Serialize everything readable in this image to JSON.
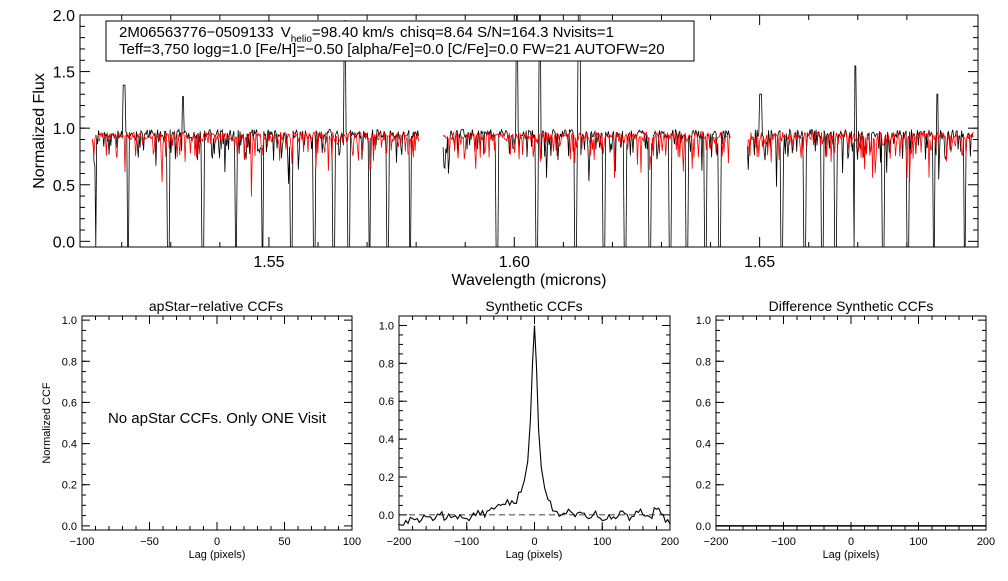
{
  "chart_data": [
    {
      "id": "spectrum",
      "type": "line",
      "title": "",
      "info_box": {
        "line1": {
          "id": "2M06563776−0509133",
          "v_prefix": "V",
          "v_sub": "helio",
          "v_value": "=98.40 km/s",
          "rest": "chisq=8.64  S/N=164.3  Nvisits=1"
        },
        "line2": "Teff=3,750 logg=1.0 [Fe/H]=−0.50 [alpha/Fe]=0.0 [C/Fe]=0.0 FW=21 AUTOFW=20"
      },
      "xlabel": "Wavelength (microns)",
      "ylabel": "Normalized Flux",
      "xlim": [
        1.5115,
        1.6945
      ],
      "ylim": [
        -0.05,
        2.0
      ],
      "xticks_labeled": [
        1.55,
        1.6,
        1.65
      ],
      "xtick_labels": [
        "1.55",
        "1.60",
        "1.65"
      ],
      "yticks": [
        0.0,
        0.5,
        1.0,
        1.5,
        2.0
      ],
      "ytick_labels": [
        "0.0",
        "0.5",
        "1.0",
        "1.5",
        "2.0"
      ],
      "chips": [
        [
          1.514,
          1.5805
        ],
        [
          1.5855,
          1.644
        ],
        [
          1.6475,
          1.6935
        ]
      ],
      "series": [
        {
          "color": "#000000",
          "role": "observed",
          "continuum": 0.95,
          "noise": 0.04
        },
        {
          "color": "#ff0000",
          "role": "model",
          "continuum": 0.93,
          "noise": 0.035
        }
      ],
      "deep_absorptions": [
        1.5145,
        1.5213,
        1.5295,
        1.5365,
        1.5433,
        1.5487,
        1.5546,
        1.5592,
        1.5632,
        1.5662,
        1.5705,
        1.5742,
        1.5788,
        1.5858,
        1.5965,
        1.6046,
        1.6125,
        1.6183,
        1.6226,
        1.6276,
        1.6318,
        1.6352,
        1.639,
        1.6419,
        1.6476,
        1.6545,
        1.6592,
        1.6628,
        1.6655,
        1.6694,
        1.6752,
        1.6802,
        1.6855,
        1.6918
      ],
      "emission_spikes": [
        {
          "x": 1.5205,
          "y": 1.38
        },
        {
          "x": 1.5325,
          "y": 1.28
        },
        {
          "x": 1.5655,
          "y": 1.95
        },
        {
          "x": 1.6005,
          "y": 2.0
        },
        {
          "x": 1.6052,
          "y": 2.0
        },
        {
          "x": 1.6132,
          "y": 2.0
        },
        {
          "x": 1.6502,
          "y": 1.3
        },
        {
          "x": 1.6695,
          "y": 1.55
        },
        {
          "x": 1.6862,
          "y": 1.3
        }
      ]
    },
    {
      "id": "apstar-ccf",
      "type": "line",
      "title": "apStar−relative CCFs",
      "xlabel": "Lag (pixels)",
      "ylabel": "Normalized CCF",
      "xlim": [
        -100,
        100
      ],
      "ylim": [
        -0.02,
        1.02
      ],
      "xticks": [
        -100,
        -50,
        0,
        50,
        100
      ],
      "xtick_labels": [
        "−100",
        "−50",
        "0",
        "50",
        "100"
      ],
      "yticks": [
        0.0,
        0.2,
        0.4,
        0.6,
        0.8,
        1.0
      ],
      "ytick_labels": [
        "0.0",
        "0.2",
        "0.4",
        "0.6",
        "0.8",
        "1.0"
      ],
      "annotation": "No apStar CCFs.  Only ONE Visit",
      "series": []
    },
    {
      "id": "synthetic-ccf",
      "type": "line",
      "title": "Synthetic CCFs",
      "xlabel": "Lag (pixels)",
      "ylabel": "",
      "xlim": [
        -200,
        200
      ],
      "ylim": [
        -0.08,
        1.05
      ],
      "xticks": [
        -200,
        -100,
        0,
        100,
        200
      ],
      "xtick_labels": [
        "−200",
        "−100",
        "0",
        "100",
        "200"
      ],
      "yticks": [
        0.0,
        0.2,
        0.4,
        0.6,
        0.8,
        1.0
      ],
      "ytick_labels": [
        "0.0",
        "0.2",
        "0.4",
        "0.6",
        "0.8",
        "1.0"
      ],
      "reference_line": {
        "y": 0.0,
        "style": "dashed"
      },
      "series": [
        {
          "color": "#000000",
          "x": [
            -200,
            -190,
            -180,
            -170,
            -160,
            -150,
            -140,
            -130,
            -120,
            -110,
            -100,
            -90,
            -80,
            -70,
            -60,
            -50,
            -40,
            -30,
            -20,
            -15,
            -10,
            -6,
            -3,
            0,
            3,
            6,
            10,
            15,
            20,
            30,
            40,
            50,
            60,
            70,
            80,
            90,
            100,
            110,
            120,
            130,
            140,
            150,
            160,
            170,
            180,
            190,
            200
          ],
          "y": [
            -0.05,
            -0.03,
            -0.02,
            -0.04,
            -0.01,
            -0.03,
            0.0,
            -0.02,
            -0.01,
            0.0,
            -0.02,
            0.01,
            0.0,
            0.02,
            0.03,
            0.05,
            0.08,
            0.06,
            0.12,
            0.18,
            0.28,
            0.5,
            0.8,
            1.0,
            0.78,
            0.45,
            0.25,
            0.14,
            0.08,
            0.02,
            0.0,
            0.03,
            -0.01,
            0.01,
            -0.02,
            0.02,
            -0.03,
            0.0,
            -0.02,
            0.02,
            -0.03,
            0.02,
            0.0,
            -0.01,
            0.03,
            0.0,
            -0.05
          ]
        }
      ]
    },
    {
      "id": "difference-ccf",
      "type": "line",
      "title": "Difference Synthetic CCFs",
      "xlabel": "Lag (pixels)",
      "ylabel": "",
      "xlim": [
        -200,
        200
      ],
      "ylim": [
        -0.02,
        1.02
      ],
      "xticks": [
        -200,
        -100,
        0,
        100,
        200
      ],
      "xtick_labels": [
        "−200",
        "−100",
        "0",
        "100",
        "200"
      ],
      "yticks": [
        0.0,
        0.2,
        0.4,
        0.6,
        0.8,
        1.0
      ],
      "ytick_labels": [
        "0.0",
        "0.2",
        "0.4",
        "0.6",
        "0.8",
        "1.0"
      ],
      "series": [
        {
          "color": "#000000",
          "x": [
            -200,
            200
          ],
          "y": [
            0.0,
            0.0
          ]
        }
      ]
    }
  ]
}
